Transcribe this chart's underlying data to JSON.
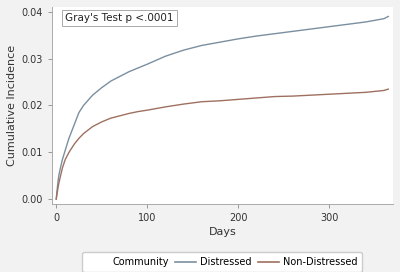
{
  "title_annotation": "Gray's Test p <.0001",
  "xlabel": "Days",
  "ylabel": "Cumulative Incidence",
  "xlim": [
    -5,
    370
  ],
  "ylim": [
    -0.001,
    0.041
  ],
  "yticks": [
    0.0,
    0.01,
    0.02,
    0.03,
    0.04
  ],
  "xticks": [
    0,
    100,
    200,
    300
  ],
  "distressed_color": "#7a8fa0",
  "non_distressed_color": "#9e7060",
  "background_color": "#f8f8f8",
  "legend_label_community": "Community",
  "legend_label_distressed": "Distressed",
  "legend_label_nondistressed": "Non-Distressed",
  "distressed_x": [
    0,
    1,
    2,
    3,
    5,
    7,
    10,
    14,
    20,
    25,
    30,
    40,
    50,
    60,
    70,
    80,
    90,
    100,
    120,
    140,
    160,
    180,
    200,
    220,
    240,
    260,
    280,
    300,
    320,
    340,
    360,
    365
  ],
  "distressed_y": [
    0.0,
    0.002,
    0.0038,
    0.0052,
    0.007,
    0.0086,
    0.0105,
    0.013,
    0.016,
    0.0185,
    0.02,
    0.0222,
    0.0238,
    0.0252,
    0.0262,
    0.0272,
    0.028,
    0.0288,
    0.0305,
    0.0318,
    0.0328,
    0.0335,
    0.0342,
    0.0348,
    0.0353,
    0.0358,
    0.0363,
    0.0368,
    0.0373,
    0.0378,
    0.0385,
    0.039
  ],
  "nondistressed_x": [
    0,
    1,
    2,
    3,
    5,
    7,
    10,
    14,
    20,
    25,
    30,
    40,
    50,
    60,
    70,
    80,
    90,
    100,
    120,
    140,
    160,
    180,
    200,
    220,
    240,
    260,
    280,
    300,
    320,
    340,
    360,
    365
  ],
  "nondistressed_y": [
    0.0,
    0.0012,
    0.0025,
    0.0035,
    0.0052,
    0.0068,
    0.0085,
    0.01,
    0.0118,
    0.013,
    0.014,
    0.0155,
    0.0165,
    0.0173,
    0.0178,
    0.0183,
    0.0187,
    0.019,
    0.0197,
    0.0203,
    0.0208,
    0.021,
    0.0213,
    0.0216,
    0.0219,
    0.022,
    0.0222,
    0.0224,
    0.0226,
    0.0228,
    0.0232,
    0.0235
  ],
  "line_width": 1.0,
  "font_size_ticks": 7,
  "font_size_label": 8,
  "font_size_annotation": 7.5,
  "font_size_legend": 7
}
